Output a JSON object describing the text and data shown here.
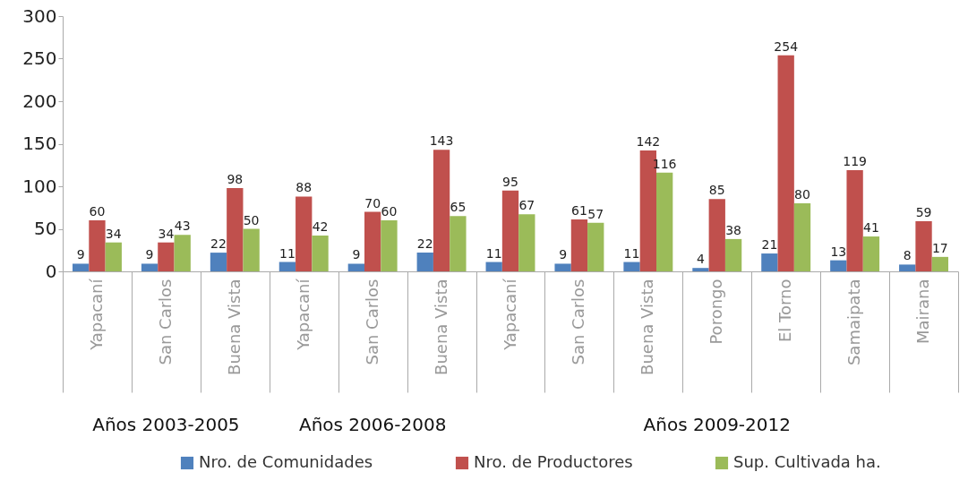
{
  "chart_data": {
    "type": "bar",
    "categories": [
      "Yapacaní",
      "San Carlos",
      "Buena Vista",
      "Yapacaní",
      "San Carlos",
      "Buena Vista",
      "Yapacaní",
      "San Carlos",
      "Buena Vista",
      "Porongo",
      "El Torno",
      "Samaipata",
      "Mairana"
    ],
    "series": [
      {
        "name": "Nro. de Comunidades",
        "color": "#4f81bd",
        "values": [
          9,
          9,
          22,
          11,
          9,
          22,
          11,
          9,
          11,
          4,
          21,
          13,
          8
        ]
      },
      {
        "name": "Nro. de Productores",
        "color": "#c0504d",
        "values": [
          60,
          34,
          98,
          88,
          70,
          143,
          95,
          61,
          142,
          85,
          254,
          119,
          59
        ]
      },
      {
        "name": "Sup. Cultivada ha.",
        "color": "#9bbb59",
        "values": [
          34,
          43,
          50,
          42,
          60,
          65,
          67,
          57,
          116,
          38,
          80,
          41,
          17
        ]
      }
    ],
    "annotations": [
      "Años 2003-2005",
      "Años 2006-2008",
      "Años 2009-2012"
    ],
    "ylim": [
      0,
      300
    ],
    "yticks": [
      0,
      50,
      100,
      150,
      200,
      250,
      300
    ],
    "grid": false,
    "legend": "bottom",
    "data_labels": true
  }
}
